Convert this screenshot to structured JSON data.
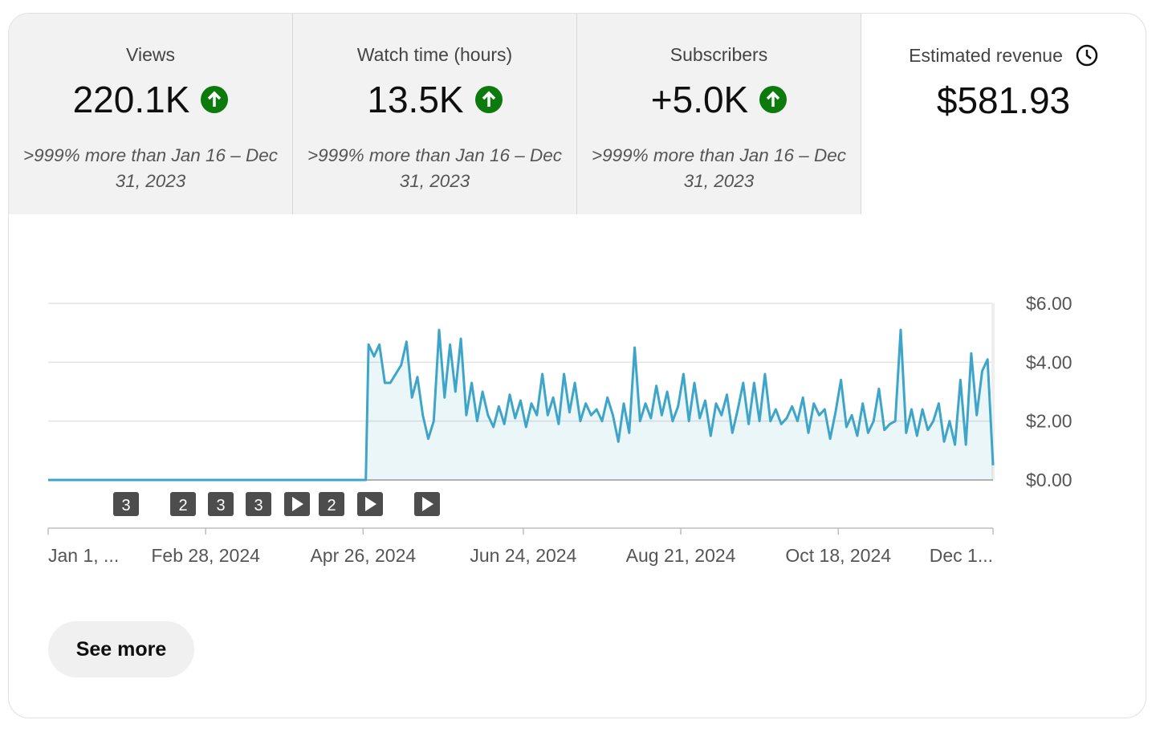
{
  "cards": [
    {
      "label": "Views",
      "value": "220.1K",
      "comparison": ">999% more than Jan 16 – Dec 31, 2023"
    },
    {
      "label": "Watch time (hours)",
      "value": "13.5K",
      "comparison": ">999% more than Jan 16 – Dec 31, 2023"
    },
    {
      "label": "Subscribers",
      "value": "+5.0K",
      "comparison": ">999% more than Jan 16 – Dec 31, 2023"
    },
    {
      "label": "Estimated revenue",
      "value": "$581.93"
    }
  ],
  "chart_data": {
    "type": "line",
    "color": "#3ea5c9",
    "x": [
      0,
      117,
      118,
      120,
      122,
      124,
      126,
      128,
      130,
      132,
      134,
      136,
      138,
      140,
      142,
      144,
      146,
      148,
      150,
      152,
      154,
      156,
      158,
      160,
      162,
      164,
      166,
      168,
      170,
      172,
      174,
      176,
      178,
      180,
      182,
      184,
      186,
      188,
      190,
      192,
      194,
      196,
      198,
      200,
      202,
      204,
      206,
      208,
      210,
      212,
      214,
      216,
      218,
      220,
      222,
      224,
      226,
      228,
      230,
      232,
      234,
      236,
      238,
      240,
      242,
      244,
      246,
      248,
      250,
      252,
      254,
      256,
      258,
      260,
      262,
      264,
      266,
      268,
      270,
      272,
      274,
      276,
      278,
      280,
      282,
      284,
      286,
      288,
      290,
      292,
      294,
      296,
      298,
      300,
      302,
      304,
      306,
      308,
      310,
      312,
      314,
      316,
      318,
      320,
      322,
      324,
      326,
      328,
      330,
      332,
      334,
      336,
      338,
      340,
      342,
      344,
      346,
      348
    ],
    "values": [
      0,
      0,
      4.6,
      4.2,
      4.6,
      3.3,
      3.3,
      3.6,
      3.9,
      4.7,
      2.8,
      3.5,
      2.2,
      1.4,
      2.0,
      5.1,
      2.8,
      4.6,
      3.0,
      4.8,
      2.2,
      3.3,
      2.0,
      3.0,
      2.2,
      1.8,
      2.5,
      1.9,
      2.9,
      2.1,
      2.7,
      1.8,
      2.6,
      2.2,
      3.6,
      2.2,
      2.8,
      1.9,
      3.6,
      2.3,
      3.3,
      2.0,
      2.6,
      2.2,
      2.4,
      2.0,
      2.8,
      2.2,
      1.3,
      2.6,
      1.6,
      4.5,
      2.0,
      2.6,
      2.1,
      3.2,
      2.2,
      3.0,
      2.0,
      2.5,
      3.6,
      2.0,
      3.3,
      2.1,
      2.7,
      1.5,
      2.6,
      2.2,
      2.9,
      1.6,
      2.4,
      3.3,
      1.9,
      3.3,
      2.0,
      3.6,
      2.0,
      2.4,
      1.9,
      2.1,
      2.5,
      2.0,
      2.8,
      1.6,
      2.6,
      2.2,
      2.4,
      1.4,
      2.3,
      3.4,
      1.8,
      2.2,
      1.5,
      2.6,
      1.6,
      2.0,
      3.1,
      1.7,
      1.9,
      2.0,
      5.1,
      1.6,
      2.4,
      1.5,
      2.4,
      1.7,
      2.0,
      2.6,
      1.3,
      2.0,
      1.2,
      3.4,
      1.2,
      4.3,
      2.2,
      3.7,
      4.1,
      0.5
    ],
    "xlim": [
      0,
      348
    ],
    "xticks": [
      {
        "value": 0,
        "label": "Jan 1, ..."
      },
      {
        "value": 58,
        "label": "Feb 28, 2024"
      },
      {
        "value": 116,
        "label": "Apr 26, 2024"
      },
      {
        "value": 175,
        "label": "Jun 24, 2024"
      },
      {
        "value": 233,
        "label": "Aug 21, 2024"
      },
      {
        "value": 291,
        "label": "Oct 18, 2024"
      },
      {
        "value": 348,
        "label": "Dec 1..."
      }
    ],
    "ylim": [
      0,
      6
    ],
    "yticks": [
      {
        "value": 0,
        "label": "$0.00"
      },
      {
        "value": 2,
        "label": "$2.00"
      },
      {
        "value": 4,
        "label": "$4.00"
      },
      {
        "value": 6,
        "label": "$6.00"
      }
    ],
    "grid": true,
    "markers": [
      "3",
      "2",
      "3",
      "3",
      "2"
    ]
  },
  "button": "See more"
}
